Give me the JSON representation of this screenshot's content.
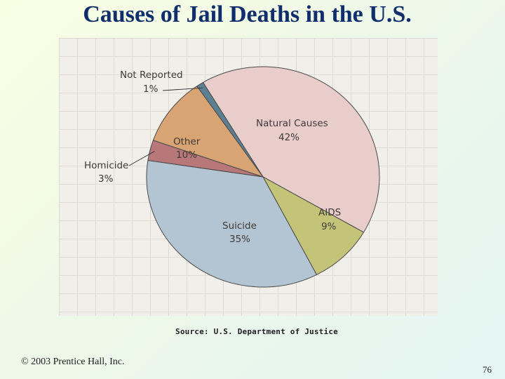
{
  "title": "Causes of Jail Deaths in the U.S.",
  "source": "Source: U.S. Department of Justice",
  "copyright": "© 2003 Prentice Hall, Inc.",
  "page_number": "76",
  "chart_data": {
    "type": "pie",
    "title": "Causes of Jail Deaths in the U.S.",
    "start_angle_deg": -121,
    "direction": "clockwise",
    "slices": [
      {
        "label": "Natural Causes",
        "value": 42,
        "value_label": "42%",
        "color": "#e8cdcb"
      },
      {
        "label": "AIDS",
        "value": 9,
        "value_label": "9%",
        "color": "#c4c478"
      },
      {
        "label": "Suicide",
        "value": 35,
        "value_label": "35%",
        "color": "#b3c5d3"
      },
      {
        "label": "Homicide",
        "value": 3,
        "value_label": "3%",
        "color": "#b8787a"
      },
      {
        "label": "Other",
        "value": 10,
        "value_label": "10%",
        "color": "#d9a473"
      },
      {
        "label": "Not Reported",
        "value": 1,
        "value_label": "1%",
        "color": "#5c7f92"
      }
    ]
  }
}
